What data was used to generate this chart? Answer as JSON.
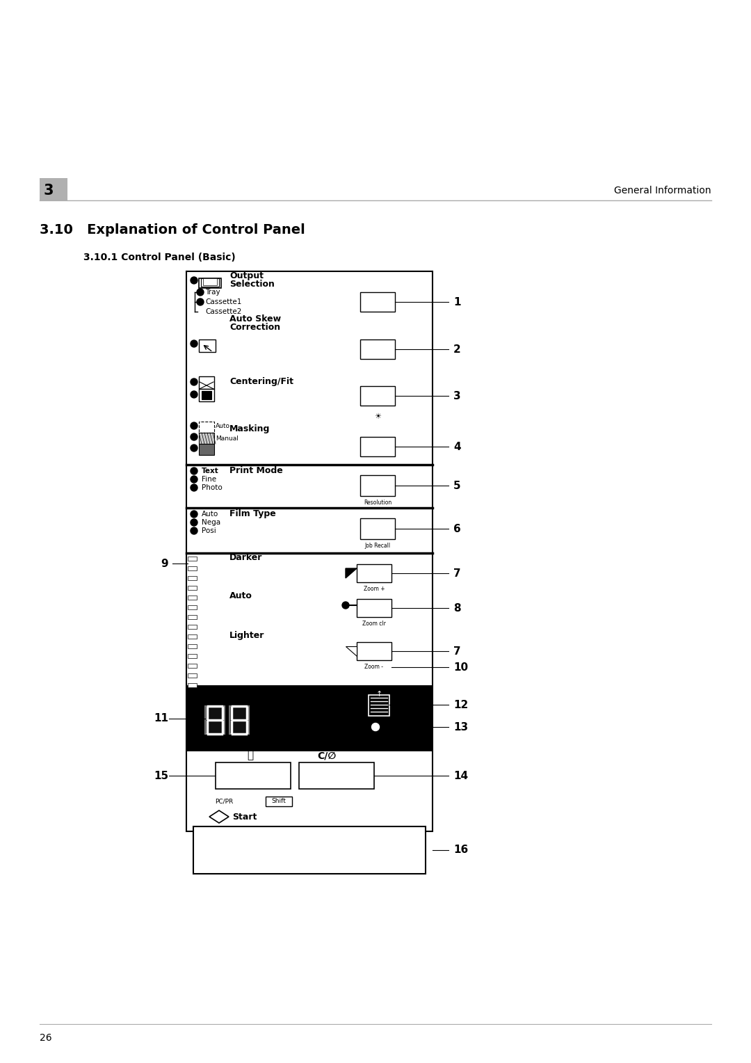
{
  "title": "3.10   Explanation of Control Panel",
  "subtitle": "3.10.1 Control Panel (Basic)",
  "chapter_num": "3",
  "chapter_label": "General Information",
  "page_num": "26",
  "bg_color": "#ffffff",
  "panel_border_color": "#000000",
  "panel_bg": "#ffffff",
  "dark_section_bg": "#000000",
  "section_labels": {
    "output_selection": "Output\nSelection",
    "auto_skew": "Auto Skew\nCorrection",
    "centering": "Centering/Fit",
    "masking": "Masking",
    "print_mode": "Print Mode",
    "film_type": "Film Type",
    "darker": "Darker",
    "auto": "Auto",
    "lighter": "Lighter"
  }
}
